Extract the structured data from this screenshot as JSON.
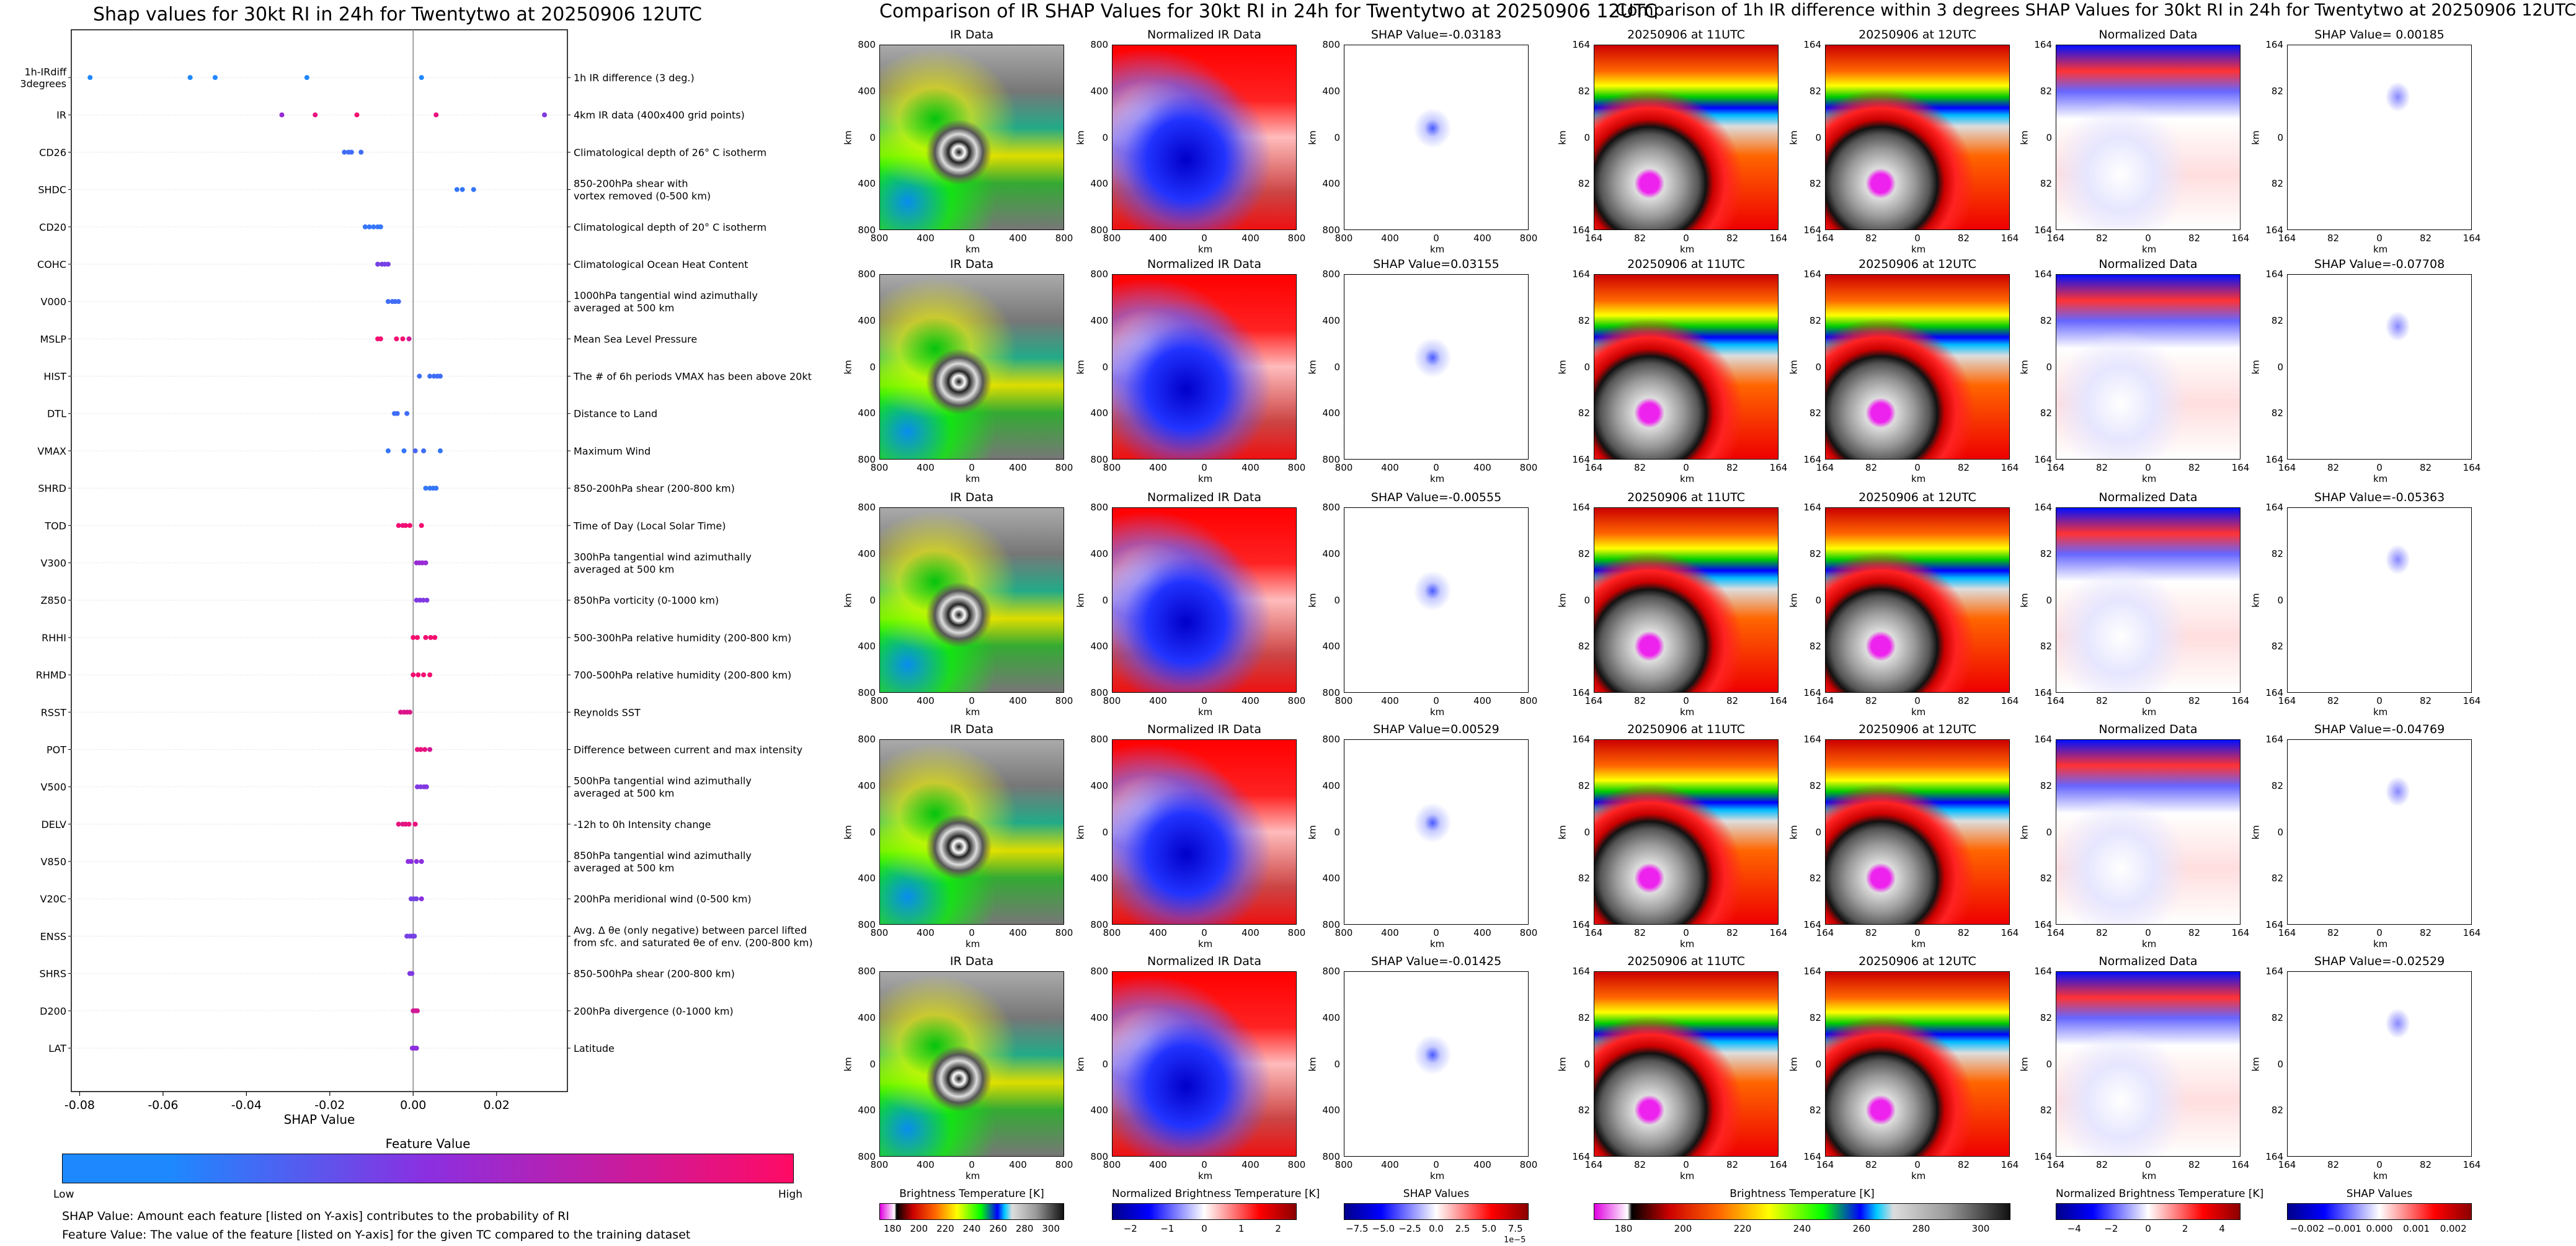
{
  "colors": {
    "low": "#1e88ff",
    "mid": "#8b2fe0",
    "high": "#ff0a64",
    "ir_cold": "#e000e0",
    "ir_warm": "#1a1a1a",
    "blue": "#0000e0",
    "red": "#f00000"
  },
  "left_chart": {
    "title": "Shap values for 30kt RI in 24h for Twentytwo at 20250906 12UTC",
    "xlabel": "SHAP Value",
    "colorbar_title": "Feature Value",
    "colorbar_low": "Low",
    "colorbar_high": "High",
    "footnote1": "SHAP Value: Amount each feature [listed on Y-axis] contributes to the probability of RI",
    "footnote2": "Feature Value: The value of the feature [listed on Y-axis] for the given TC compared to the training dataset"
  },
  "chart_data": {
    "type": "scatter",
    "title": "Shap values for 30kt RI in 24h for Twentytwo at 20250906 12UTC",
    "xlabel": "SHAP Value",
    "ylabel": "",
    "xlim": [
      -0.082,
      0.037
    ],
    "xticks": [
      "-0.08",
      "-0.06",
      "-0.04",
      "-0.02",
      "0.00",
      "0.02"
    ],
    "xtick_values": [
      -0.08,
      -0.06,
      -0.04,
      -0.02,
      0.0,
      0.02
    ],
    "features": [
      {
        "code": "1h-IRdiff\n3degrees",
        "desc": "1h IR difference (3 deg.)",
        "points": [
          [
            -0.0775,
            0.0
          ],
          [
            -0.0535,
            0.0
          ],
          [
            -0.0475,
            0.0
          ],
          [
            -0.0255,
            0.0
          ],
          [
            0.002,
            0.0
          ]
        ]
      },
      {
        "code": "IR",
        "desc": "4km IR data (400x400 grid points)",
        "points": [
          [
            -0.0315,
            0.55
          ],
          [
            -0.0235,
            0.9
          ],
          [
            -0.0135,
            0.95
          ],
          [
            0.0055,
            0.9
          ],
          [
            0.0315,
            0.45
          ]
        ]
      },
      {
        "code": "CD26",
        "desc": "Climatological depth of 26° C isotherm",
        "points": [
          [
            -0.0165,
            0.15
          ],
          [
            -0.0155,
            0.15
          ],
          [
            -0.0148,
            0.15
          ],
          [
            -0.0125,
            0.15
          ]
        ]
      },
      {
        "code": "SHDC",
        "desc": "850-200hPa shear with\nvortex removed (0-500 km)",
        "points": [
          [
            0.0105,
            0.1
          ],
          [
            0.0118,
            0.1
          ],
          [
            0.0145,
            0.1
          ]
        ]
      },
      {
        "code": "CD20",
        "desc": "Climatological depth of 20° C isotherm",
        "points": [
          [
            -0.0115,
            0.1
          ],
          [
            -0.0105,
            0.1
          ],
          [
            -0.0095,
            0.1
          ],
          [
            -0.0085,
            0.1
          ],
          [
            -0.0078,
            0.1
          ]
        ]
      },
      {
        "code": "COHC",
        "desc": "Climatological Ocean Heat Content",
        "points": [
          [
            -0.0085,
            0.4
          ],
          [
            -0.0075,
            0.4
          ],
          [
            -0.0068,
            0.4
          ],
          [
            -0.006,
            0.4
          ]
        ]
      },
      {
        "code": "V000",
        "desc": "1000hPa tangential wind azimuthally\naveraged at 500 km",
        "points": [
          [
            -0.006,
            0.15
          ],
          [
            -0.005,
            0.15
          ],
          [
            -0.0043,
            0.15
          ],
          [
            -0.0035,
            0.15
          ]
        ]
      },
      {
        "code": "MSLP",
        "desc": "Mean Sea Level Pressure",
        "points": [
          [
            -0.0085,
            0.95
          ],
          [
            -0.0078,
            0.95
          ],
          [
            -0.004,
            0.95
          ],
          [
            -0.0025,
            0.95
          ],
          [
            -0.001,
            0.8
          ]
        ]
      },
      {
        "code": "HIST",
        "desc": "The # of 6h periods VMAX has been above 20kt",
        "points": [
          [
            0.0015,
            0.15
          ],
          [
            0.004,
            0.15
          ],
          [
            0.005,
            0.15
          ],
          [
            0.0058,
            0.15
          ],
          [
            0.0065,
            0.15
          ]
        ]
      },
      {
        "code": "DTL",
        "desc": "Distance to Land",
        "points": [
          [
            -0.0045,
            0.15
          ],
          [
            -0.0038,
            0.15
          ],
          [
            -0.0015,
            0.15
          ]
        ]
      },
      {
        "code": "VMAX",
        "desc": "Maximum Wind",
        "points": [
          [
            -0.006,
            0.1
          ],
          [
            -0.0022,
            0.1
          ],
          [
            0.0005,
            0.2
          ],
          [
            0.0025,
            0.15
          ],
          [
            0.0065,
            0.1
          ]
        ]
      },
      {
        "code": "SHRD",
        "desc": "850-200hPa shear (200-800 km)",
        "points": [
          [
            0.003,
            0.1
          ],
          [
            0.004,
            0.1
          ],
          [
            0.0048,
            0.1
          ],
          [
            0.0055,
            0.1
          ]
        ]
      },
      {
        "code": "TOD",
        "desc": "Time of Day (Local Solar Time)",
        "points": [
          [
            -0.0035,
            0.95
          ],
          [
            -0.0025,
            0.9
          ],
          [
            -0.0018,
            0.95
          ],
          [
            -0.0008,
            0.95
          ],
          [
            0.002,
            0.95
          ]
        ]
      },
      {
        "code": "V300",
        "desc": "300hPa tangential wind azimuthally\naveraged at 500 km",
        "points": [
          [
            0.0008,
            0.55
          ],
          [
            0.0015,
            0.55
          ],
          [
            0.0022,
            0.55
          ],
          [
            0.003,
            0.55
          ]
        ]
      },
      {
        "code": "Z850",
        "desc": "850hPa vorticity (0-1000 km)",
        "points": [
          [
            0.0008,
            0.45
          ],
          [
            0.0016,
            0.45
          ],
          [
            0.0024,
            0.45
          ],
          [
            0.0033,
            0.45
          ]
        ]
      },
      {
        "code": "RHHI",
        "desc": "500-300hPa relative humidity (200-800 km)",
        "points": [
          [
            0.0,
            0.95
          ],
          [
            0.001,
            0.95
          ],
          [
            0.003,
            0.95
          ],
          [
            0.0042,
            0.95
          ],
          [
            0.0052,
            0.95
          ]
        ]
      },
      {
        "code": "RHMD",
        "desc": "700-500hPa relative humidity (200-800 km)",
        "points": [
          [
            0.0,
            0.95
          ],
          [
            0.0012,
            0.95
          ],
          [
            0.0025,
            0.95
          ],
          [
            0.004,
            0.95
          ]
        ]
      },
      {
        "code": "RSST",
        "desc": "Reynolds SST",
        "points": [
          [
            -0.003,
            0.85
          ],
          [
            -0.0022,
            0.85
          ],
          [
            -0.0015,
            0.85
          ],
          [
            -0.0008,
            0.85
          ]
        ]
      },
      {
        "code": "POT",
        "desc": "Difference between current and max intensity",
        "points": [
          [
            0.001,
            0.9
          ],
          [
            0.0018,
            0.9
          ],
          [
            0.0028,
            0.9
          ],
          [
            0.004,
            0.8
          ]
        ]
      },
      {
        "code": "V500",
        "desc": "500hPa tangential wind azimuthally\naveraged at 500 km",
        "points": [
          [
            0.001,
            0.45
          ],
          [
            0.0018,
            0.45
          ],
          [
            0.0026,
            0.45
          ],
          [
            0.0032,
            0.45
          ]
        ]
      },
      {
        "code": "DELV",
        "desc": "-12h to 0h Intensity change",
        "points": [
          [
            -0.0035,
            0.9
          ],
          [
            -0.0025,
            0.85
          ],
          [
            -0.0018,
            0.9
          ],
          [
            -0.001,
            0.9
          ],
          [
            0.0005,
            0.9
          ]
        ]
      },
      {
        "code": "V850",
        "desc": "850hPa tangential wind azimuthally\naveraged at 500 km",
        "points": [
          [
            -0.0012,
            0.5
          ],
          [
            -0.0005,
            0.5
          ],
          [
            0.0008,
            0.5
          ],
          [
            0.002,
            0.5
          ]
        ]
      },
      {
        "code": "V20C",
        "desc": "200hPa meridional wind (0-500 km)",
        "points": [
          [
            -0.0005,
            0.4
          ],
          [
            0.0002,
            0.4
          ],
          [
            0.0008,
            0.4
          ],
          [
            0.002,
            0.5
          ]
        ]
      },
      {
        "code": "ENSS",
        "desc": "Avg. Δ θe (only negative) between parcel lifted\nfrom sfc. and saturated θe of env. (200-800 km)",
        "points": [
          [
            -0.0015,
            0.4
          ],
          [
            -0.0008,
            0.4
          ],
          [
            -0.0002,
            0.4
          ],
          [
            0.0003,
            0.4
          ]
        ]
      },
      {
        "code": "SHRS",
        "desc": "850-500hPa shear (200-800 km)",
        "points": [
          [
            -0.0008,
            0.45
          ],
          [
            -0.0003,
            0.45
          ]
        ]
      },
      {
        "code": "D200",
        "desc": "200hPa divergence (0-1000 km)",
        "points": [
          [
            0.0,
            0.8
          ],
          [
            0.0005,
            0.8
          ],
          [
            0.001,
            0.8
          ]
        ]
      },
      {
        "code": "LAT",
        "desc": "Latitude",
        "points": [
          [
            -0.0002,
            0.5
          ],
          [
            0.0003,
            0.5
          ],
          [
            0.0008,
            0.5
          ]
        ]
      }
    ]
  },
  "mid": {
    "title": "Comparison of IR SHAP Values for 30kt RI in 24h for Twentytwo at 20250906 12UTC",
    "col_ir": "IR Data",
    "col_norm": "Normalized IR Data",
    "shap_titles": [
      "SHAP Value=-0.03183",
      "SHAP Value=0.03155",
      "SHAP Value=-0.00555",
      "SHAP Value=0.00529",
      "SHAP Value=-0.01425"
    ],
    "ticks": [
      "800",
      "400",
      "0",
      "400",
      "800"
    ],
    "xticks": [
      "800",
      "400",
      "0",
      "400",
      "800"
    ],
    "axis_unit": "km",
    "cb1": {
      "label": "Brightness Temperature [K]",
      "ticks": [
        "180",
        "200",
        "220",
        "240",
        "260",
        "280",
        "300"
      ]
    },
    "cb2": {
      "label": "Normalized Brightness Temperature [K]",
      "ticks": [
        "−2",
        "−1",
        "0",
        "1",
        "2"
      ]
    },
    "cb3": {
      "label": "SHAP Values",
      "ticks": [
        "−7.5",
        "−5.0",
        "−2.5",
        "0.0",
        "2.5",
        "5.0",
        "7.5"
      ],
      "offset": "1e−5"
    }
  },
  "right": {
    "title": "Comparison of 1h IR difference within 3 degrees SHAP Values for 30kt RI in 24h for Twentytwo at 20250906 12UTC",
    "col1": "20250906 at 11UTC",
    "col2": "20250906 at 12UTC",
    "col3": "Normalized Data",
    "shap_titles": [
      "SHAP Value= 0.00185",
      "SHAP Value=-0.07708",
      "SHAP Value=-0.05363",
      "SHAP Value=-0.04769",
      "SHAP Value=-0.02529"
    ],
    "ticks": [
      "164",
      "82",
      "0",
      "82",
      "164"
    ],
    "axis_unit": "km",
    "cb1": {
      "label": "Brightness Temperature [K]",
      "ticks": [
        "180",
        "200",
        "220",
        "240",
        "260",
        "280",
        "300"
      ]
    },
    "cb2": {
      "label": "Normalized Brightness Temperature [K]",
      "ticks": [
        "−4",
        "−2",
        "0",
        "2",
        "4"
      ]
    },
    "cb3": {
      "label": "SHAP Values",
      "ticks": [
        "−0.002",
        "−0.001",
        "0.000",
        "0.001",
        "0.002"
      ]
    }
  }
}
